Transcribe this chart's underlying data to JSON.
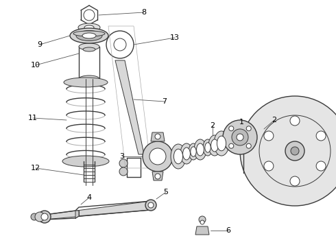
{
  "bg_color": "#ffffff",
  "line_color": "#3a3a3a",
  "label_color": "#000000",
  "fig_width": 4.9,
  "fig_height": 3.6,
  "dpi": 100
}
